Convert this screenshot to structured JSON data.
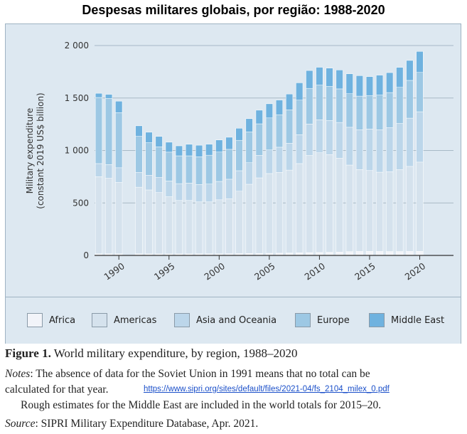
{
  "title": "Despesas militares globais, por região: 1988-2020",
  "chart_data": {
    "type": "bar",
    "stacked": true,
    "ylabel_lines": [
      "Military expenditure",
      "(constant 2019 US$ billion)"
    ],
    "ylim": [
      0,
      2000
    ],
    "yticks": [
      0,
      500,
      1000,
      1500,
      2000
    ],
    "ytick_labels": [
      "0",
      "500",
      "1 000",
      "1 500",
      "2 000"
    ],
    "xticks": [
      1990,
      1995,
      2000,
      2005,
      2010,
      2015,
      2020
    ],
    "xtick_labels": [
      "1990",
      "1995",
      "2000",
      "2005",
      "2010",
      "2015",
      "2020"
    ],
    "grid": true,
    "years": [
      1988,
      1989,
      1990,
      1991,
      1992,
      1993,
      1994,
      1995,
      1996,
      1997,
      1998,
      1999,
      2000,
      2001,
      2002,
      2003,
      2004,
      2005,
      2006,
      2007,
      2008,
      2009,
      2010,
      2011,
      2012,
      2013,
      2014,
      2015,
      2016,
      2017,
      2018,
      2019,
      2020
    ],
    "series": [
      {
        "name": "Africa",
        "color": "#f2f4f9",
        "values": [
          15,
          15,
          15,
          null,
          15,
          14,
          14,
          14,
          14,
          14,
          15,
          15,
          15,
          16,
          17,
          18,
          19,
          20,
          21,
          23,
          25,
          27,
          28,
          30,
          32,
          36,
          38,
          39,
          38,
          37,
          37,
          38,
          39
        ]
      },
      {
        "name": "Americas",
        "color": "#d5e2ed",
        "values": [
          735,
          720,
          680,
          null,
          635,
          610,
          585,
          545,
          510,
          510,
          495,
          495,
          515,
          525,
          595,
          660,
          720,
          760,
          770,
          790,
          850,
          925,
          950,
          930,
          895,
          825,
          780,
          770,
          755,
          760,
          780,
          810,
          850
        ]
      },
      {
        "name": "Asia and Oceania",
        "color": "#bcd6ea",
        "values": [
          125,
          130,
          140,
          null,
          140,
          140,
          145,
          150,
          160,
          165,
          165,
          170,
          175,
          185,
          195,
          205,
          215,
          225,
          240,
          255,
          275,
          300,
          315,
          325,
          340,
          360,
          380,
          395,
          405,
          420,
          440,
          460,
          480
        ]
      },
      {
        "name": "Europe",
        "color": "#9dc8e4",
        "values": [
          630,
          630,
          525,
          null,
          345,
          310,
          290,
          275,
          265,
          260,
          265,
          275,
          280,
          285,
          290,
          295,
          300,
          305,
          310,
          320,
          330,
          340,
          330,
          325,
          320,
          320,
          320,
          320,
          330,
          335,
          345,
          360,
          375
        ]
      },
      {
        "name": "Middle East",
        "color": "#6fb2df",
        "values": [
          40,
          40,
          110,
          null,
          100,
          100,
          100,
          95,
          95,
          110,
          110,
          105,
          115,
          115,
          115,
          125,
          130,
          135,
          140,
          150,
          165,
          170,
          170,
          175,
          180,
          190,
          195,
          180,
          190,
          190,
          190,
          190,
          200
        ]
      }
    ]
  },
  "legend": [
    "Africa",
    "Americas",
    "Asia and Oceania",
    "Europe",
    "Middle East"
  ],
  "caption": {
    "figure_label": "Figure 1.",
    "figure_text": "World military expenditure, by region, 1988–2020",
    "notes_label": "Notes",
    "notes_line1": ": The absence of data for the Soviet Union in 1991 means that no total can be",
    "notes_line2": "calculated for that year.",
    "notes_line3": "Rough estimates for the Middle East are included in the world totals for 2015–20.",
    "link": "https://www.sipri.org/sites/default/files/2021-04/fs_2104_milex_0.pdf",
    "source_label": "Source",
    "source_text": ": SIPRI Military Expenditure Database, Apr. 2021."
  }
}
